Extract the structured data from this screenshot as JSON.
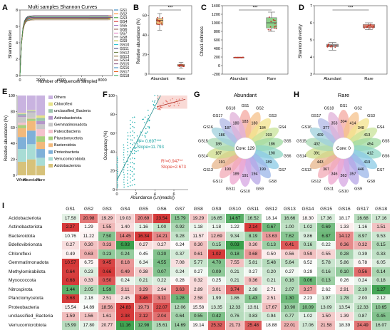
{
  "panels": {
    "A": {
      "label": "A",
      "title": "Multi samples Shannon Curves",
      "xlabel": "Number of sequences sampled",
      "ylabel": "Shannon index",
      "xticks": [
        "0",
        "2000",
        "4000",
        "6000",
        "8000"
      ],
      "yticks": [
        "0",
        "2",
        "4",
        "6",
        "8"
      ],
      "legend": [
        "GS1",
        "GS2",
        "GS3",
        "GS4",
        "GS5",
        "GS6",
        "GS7",
        "GS8",
        "GS9",
        "GS10",
        "GS11",
        "GS12",
        "GS13",
        "GS14",
        "GS15",
        "GS16",
        "GS17",
        "GS18"
      ],
      "colors": [
        "#1f77b4",
        "#ff7f0e",
        "#2ca02c",
        "#d62728",
        "#9467bd",
        "#8c564b",
        "#e377c2",
        "#7f7f7f",
        "#bcbd22",
        "#17becf",
        "#393b79",
        "#637939",
        "#8c6d31",
        "#843c39",
        "#7b4173",
        "#3182bd",
        "#e6550d",
        "#31a354"
      ]
    },
    "B": {
      "label": "B",
      "ylabel": "Relative abundance (%)",
      "yticks": [
        "0",
        "20",
        "40",
        "60"
      ],
      "cats": [
        "Abundant",
        "Rare"
      ],
      "sig": "***"
    },
    "C": {
      "label": "C",
      "ylabel": "Chao1 richness",
      "yticks": [
        "-200",
        "0",
        "200",
        "400",
        "600",
        "800",
        "1000",
        "1200",
        "1400"
      ],
      "cats": [
        "Abundant",
        "Rare"
      ],
      "sig": "***"
    },
    "D": {
      "label": "D",
      "ylabel": "Shannon diversity",
      "yticks": [
        "3",
        "4",
        "5",
        "6",
        "7"
      ],
      "cats": [
        "Abundant",
        "Rare"
      ],
      "sig": "***"
    },
    "E": {
      "label": "E",
      "ylabel": "Relative abundance (%)",
      "yticks": [
        "0",
        "20",
        "40",
        "60",
        "80",
        "100"
      ],
      "cats": [
        "Whole",
        "Abundant",
        "Rare"
      ],
      "legend": [
        "Others",
        "Chloroflexi",
        "unclassified_Bacteria",
        "Actinobacteriota",
        "Gemmatimonadota",
        "Patescibacteria",
        "Planctomycetota",
        "Bacteroidota",
        "Proteobacteria",
        "Verrucomicrobiota",
        "Acidobacteriota"
      ]
    },
    "F": {
      "label": "F",
      "xlabel": "Abundance (Ln(reads))",
      "ylabel": "Occupancy (%)",
      "xticks": [
        "0",
        "2",
        "4",
        "6"
      ],
      "yticks": [
        "0",
        "20",
        "40",
        "60",
        "80",
        "100"
      ],
      "stat1": "R²= 0.697***",
      "stat2": "Slope=11.793",
      "stat3": "R²=0.947**",
      "stat4": "Slope=2.673"
    },
    "G": {
      "label": "G",
      "title": "Abundant",
      "core": "Core: 129",
      "samples": [
        "GS1",
        "GS2",
        "GS3",
        "GS4",
        "GS5",
        "GS6",
        "GS7",
        "GS8",
        "GS9",
        "GS10",
        "GS11",
        "GS12",
        "GS13",
        "GS14",
        "GS15",
        "GS16",
        "GS17",
        "GS18"
      ],
      "values": [
        "183",
        "180",
        "184",
        "193",
        "186",
        "190",
        "189",
        "190",
        "194",
        "191",
        "189",
        "190",
        "191",
        "187",
        "186",
        "186",
        "187",
        "180"
      ]
    },
    "H": {
      "label": "H",
      "title": "Rare",
      "core": "Core: 0",
      "samples": [
        "GS1",
        "GS2",
        "GS3",
        "GS4",
        "GS5",
        "GS6",
        "GS7",
        "GS8",
        "GS9",
        "GS10",
        "GS11",
        "GS12",
        "GS13",
        "GS14",
        "GS15",
        "GS16",
        "GS17",
        "GS18"
      ],
      "values": [
        "304",
        "414",
        "348",
        "413",
        "454",
        "412",
        "419",
        "446",
        "357",
        "363",
        "346",
        "367",
        "443",
        "391",
        "402",
        "409",
        "377",
        "353"
      ]
    },
    "I": {
      "label": "I"
    }
  },
  "chart_data": [
    {
      "type": "line",
      "panel": "A",
      "title": "Multi samples Shannon Curves",
      "xlabel": "Number of sequences sampled",
      "ylabel": "Shannon index",
      "xlim": [
        0,
        9000
      ],
      "ylim": [
        0,
        8
      ],
      "series_names": [
        "GS1",
        "GS2",
        "GS3",
        "GS4",
        "GS5",
        "GS6",
        "GS7",
        "GS8",
        "GS9",
        "GS10",
        "GS11",
        "GS12",
        "GS13",
        "GS14",
        "GS15",
        "GS16",
        "GS17",
        "GS18"
      ],
      "plateau": [
        7.0,
        7.2,
        6.9,
        7.3,
        7.1,
        6.8,
        7.2,
        7.0,
        6.9,
        7.1,
        7.3,
        7.0,
        6.8,
        7.2,
        7.1,
        6.9,
        7.0,
        7.2
      ]
    },
    {
      "type": "box",
      "panel": "B",
      "categories": [
        "Abundant",
        "Rare"
      ],
      "ylabel": "Relative abundance (%)",
      "ylim": [
        0,
        70
      ],
      "boxes": [
        {
          "min": 45,
          "q1": 51,
          "median": 55,
          "q3": 57,
          "max": 62
        },
        {
          "min": 6,
          "q1": 8,
          "median": 9,
          "q3": 10,
          "max": 12
        }
      ]
    },
    {
      "type": "box",
      "panel": "C",
      "categories": [
        "Abundant",
        "Rare"
      ],
      "ylabel": "Chao1 richness",
      "ylim": [
        -200,
        1400
      ],
      "boxes": [
        {
          "min": 180,
          "q1": 185,
          "median": 190,
          "q3": 193,
          "max": 196
        },
        {
          "min": 800,
          "q1": 880,
          "median": 1000,
          "q3": 1120,
          "max": 1250
        }
      ]
    },
    {
      "type": "box",
      "panel": "D",
      "categories": [
        "Abundant",
        "Rare"
      ],
      "ylabel": "Shannon diversity",
      "ylim": [
        3,
        7
      ],
      "boxes": [
        {
          "min": 4.4,
          "q1": 4.6,
          "median": 4.7,
          "q3": 4.75,
          "max": 4.85
        },
        {
          "min": 5.6,
          "q1": 5.72,
          "median": 5.8,
          "q3": 5.9,
          "max": 6.0
        }
      ]
    },
    {
      "type": "bar",
      "panel": "E",
      "stacked": true,
      "categories": [
        "Whole",
        "Abundant",
        "Rare"
      ],
      "ylabel": "Relative abundance (%)",
      "ylim": [
        0,
        100
      ],
      "series": [
        {
          "name": "Acidobacteriota",
          "values": [
            17,
            20,
            12
          ],
          "color": "#d7c27a"
        },
        {
          "name": "Verrucomicrobiota",
          "values": [
            16,
            19,
            10
          ],
          "color": "#a8dcd5"
        },
        {
          "name": "Proteobacteria",
          "values": [
            15,
            17,
            11
          ],
          "color": "#7fb0d8"
        },
        {
          "name": "Bacteroidota",
          "values": [
            11,
            12,
            9
          ],
          "color": "#f2b97b"
        },
        {
          "name": "Planctomycetota",
          "values": [
            4,
            3,
            7
          ],
          "color": "#a6cf7e"
        },
        {
          "name": "Patescibacteria",
          "values": [
            3,
            1,
            9
          ],
          "color": "#f4c2cc"
        },
        {
          "name": "Gemmatimonadota",
          "values": [
            7,
            7,
            6
          ],
          "color": "#c8c8c8"
        },
        {
          "name": "Actinobacteriota",
          "values": [
            2,
            1,
            4
          ],
          "color": "#b497c9"
        },
        {
          "name": "unclassified_Bacteria",
          "values": [
            2,
            1,
            4
          ],
          "color": "#9bc3ad"
        },
        {
          "name": "Chloroflexi",
          "values": [
            1,
            1,
            3
          ],
          "color": "#e6e38a"
        },
        {
          "name": "Others",
          "values": [
            22,
            18,
            25
          ],
          "color": "#c9b3e0"
        }
      ]
    },
    {
      "type": "scatter",
      "panel": "F",
      "xlabel": "Abundance (Ln(reads))",
      "ylabel": "Occupancy (%)",
      "xlim": [
        0,
        7.5
      ],
      "ylim": [
        0,
        100
      ],
      "fits": [
        {
          "from": [
            0,
            10
          ],
          "to": [
            4.6,
            100
          ]
        },
        {
          "from": [
            4.2,
            88
          ],
          "to": [
            7.2,
            96
          ]
        }
      ]
    },
    {
      "type": "table",
      "panel": "I",
      "columns": [
        "GS1",
        "GS2",
        "GS3",
        "GS4",
        "GS5",
        "GS6",
        "GS7",
        "GS8",
        "GS9",
        "GS10",
        "GS11",
        "GS12",
        "GS13",
        "GS14",
        "GS15",
        "GS16",
        "GS17",
        "GS18"
      ],
      "rows": [
        {
          "name": "Acidobacteriota",
          "values": [
            "17.58",
            "20.98",
            "19.29",
            "19.03",
            "20.69",
            "23.54",
            "15.79",
            "19.29",
            "16.85",
            "14.67",
            "16.52",
            "18.14",
            "16.66",
            "18.30",
            "17.36",
            "18.17",
            "16.68",
            "17.16"
          ]
        },
        {
          "name": "Actinobacteriota",
          "values": [
            "2.27",
            "1.29",
            "1.55",
            "1.40",
            "1.16",
            "1.00",
            "0.92",
            "1.18",
            "1.18",
            "1.22",
            "2.14",
            "0.67",
            "1.00",
            "1.02",
            "0.69",
            "1.33",
            "1.16",
            "1.51"
          ]
        },
        {
          "name": "Bacteroidota",
          "values": [
            "10.76",
            "11.22",
            "7.50",
            "14.45",
            "16.34",
            "14.21",
            "9.28",
            "11.57",
            "12.69",
            "9.34",
            "8.19",
            "13.63",
            "7.62",
            "9.86",
            "6.87",
            "14.12",
            "8.97",
            "9.53"
          ]
        },
        {
          "name": "Bdellovibrionota",
          "values": [
            "0.27",
            "0.30",
            "0.33",
            "0.03",
            "0.27",
            "0.27",
            "0.24",
            "0.30",
            "0.15",
            "0.03",
            "0.30",
            "0.13",
            "0.41",
            "0.16",
            "0.22",
            "0.36",
            "0.32",
            "0.15"
          ]
        },
        {
          "name": "Chloroflexi",
          "values": [
            "0.49",
            "0.63",
            "0.23",
            "0.24",
            "0.45",
            "0.20",
            "0.37",
            "0.61",
            "1.02",
            "0.18",
            "0.68",
            "0.50",
            "0.56",
            "0.59",
            "0.55",
            "0.28",
            "0.39",
            "0.33"
          ]
        },
        {
          "name": "Gemmatimonadota",
          "values": [
            "10.57",
            "6.75",
            "9.45",
            "8.18",
            "6.34",
            "4.55",
            "7.08",
            "5.77",
            "4.70",
            "7.55",
            "5.81",
            "5.48",
            "5.64",
            "6.52",
            "5.78",
            "5.86",
            "6.78",
            "6.05"
          ]
        },
        {
          "name": "Methylomirabilota",
          "values": [
            "0.64",
            "0.23",
            "0.66",
            "0.49",
            "0.38",
            "0.07",
            "0.24",
            "0.27",
            "0.09",
            "0.21",
            "0.27",
            "0.20",
            "0.27",
            "0.29",
            "0.16",
            "0.10",
            "0.56",
            "0.14"
          ]
        },
        {
          "name": "Myxococcota",
          "values": [
            "0.68",
            "0.33",
            "0.50",
            "0.24",
            "0.21",
            "0.22",
            "0.28",
            "0.32",
            "0.25",
            "0.21",
            "0.36",
            "0.21",
            "0.16",
            "0.06",
            "0.13",
            "0.26",
            "0.24",
            "0.18"
          ]
        },
        {
          "name": "Nitrospirota",
          "values": [
            "1.44",
            "2.05",
            "1.59",
            "3.11",
            "3.29",
            "2.94",
            "3.63",
            "2.89",
            "3.01",
            "3.74",
            "2.38",
            "2.71",
            "2.07",
            "3.27",
            "2.62",
            "2.91",
            "2.10",
            "1.27"
          ]
        },
        {
          "name": "Planctomycetota",
          "values": [
            "3.68",
            "2.18",
            "2.51",
            "2.45",
            "3.46",
            "3.11",
            "1.28",
            "2.58",
            "1.99",
            "1.86",
            "1.43",
            "2.51",
            "1.30",
            "2.23",
            "1.97",
            "1.78",
            "2.00",
            "2.12"
          ]
        },
        {
          "name": "Proteobacteria",
          "values": [
            "15.54",
            "14.89",
            "18.56",
            "24.83",
            "19.73",
            "22.07",
            "12.06",
            "15.58",
            "13.35",
            "12.33",
            "13.61",
            "17.67",
            "10.90",
            "10.09",
            "13.09",
            "13.54",
            "12.33",
            "10.65"
          ]
        },
        {
          "name": "unclassified_Bacteria",
          "values": [
            "1.59",
            "1.56",
            "1.61",
            "2.38",
            "2.12",
            "2.04",
            "0.64",
            "0.55",
            "0.42",
            "0.76",
            "0.83",
            "0.94",
            "0.77",
            "1.02",
            "1.50",
            "1.39",
            "0.87",
            "0.45"
          ]
        },
        {
          "name": "Verrucomicrobiota",
          "values": [
            "15.99",
            "17.80",
            "20.77",
            "11.16",
            "12.98",
            "15.61",
            "14.69",
            "19.14",
            "25.32",
            "21.73",
            "25.48",
            "18.88",
            "22.01",
            "17.06",
            "21.58",
            "18.39",
            "24.49",
            "16.07"
          ]
        }
      ]
    }
  ]
}
